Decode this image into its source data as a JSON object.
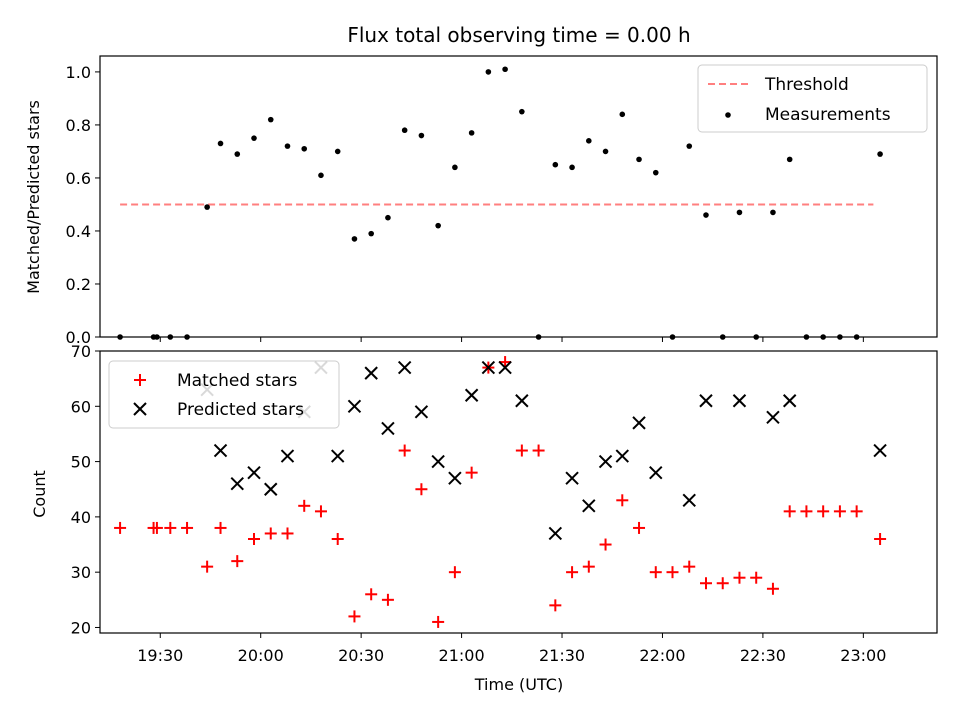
{
  "chart_data": [
    {
      "type": "scatter",
      "title": "Flux total observing time = 0.00 h",
      "xlabel": "",
      "ylabel": "Matched/Predicted stars",
      "ylim": [
        0,
        1.06
      ],
      "yticks": [
        0.0,
        0.2,
        0.4,
        0.6,
        0.8,
        1.0
      ],
      "ytick_labels": [
        "0.0",
        "0.2",
        "0.4",
        "0.6",
        "0.8",
        "1.0"
      ],
      "xlim": [
        "19:12",
        "23:22"
      ],
      "legend_position": "upper right",
      "series": [
        {
          "name": "Threshold",
          "style": "dashed-line",
          "color": "#ff7f7f",
          "x": [
            "19:18",
            "23:03"
          ],
          "y": [
            0.5,
            0.5
          ]
        },
        {
          "name": "Measurements",
          "style": "dot",
          "color": "#000000",
          "x": [
            "19:18",
            "19:28",
            "19:29",
            "19:33",
            "19:38",
            "19:44",
            "19:48",
            "19:53",
            "19:58",
            "20:03",
            "20:08",
            "20:13",
            "20:18",
            "20:23",
            "20:28",
            "20:33",
            "20:38",
            "20:43",
            "20:48",
            "20:53",
            "20:58",
            "21:03",
            "21:08",
            "21:13",
            "21:18",
            "21:23",
            "21:28",
            "21:33",
            "21:38",
            "21:43",
            "21:48",
            "21:53",
            "21:58",
            "22:03",
            "22:08",
            "22:13",
            "22:18",
            "22:23",
            "22:28",
            "22:33",
            "22:38",
            "22:43",
            "22:48",
            "22:53",
            "22:58",
            "23:05"
          ],
          "y": [
            0.0,
            0.0,
            0.0,
            0.0,
            0.0,
            0.49,
            0.73,
            0.69,
            0.75,
            0.82,
            0.72,
            0.71,
            0.61,
            0.7,
            0.37,
            0.39,
            0.45,
            0.78,
            0.76,
            0.42,
            0.64,
            0.77,
            1.0,
            1.01,
            0.85,
            0.0,
            0.65,
            0.64,
            0.74,
            0.7,
            0.84,
            0.67,
            0.62,
            0.0,
            0.72,
            0.46,
            0.0,
            0.47,
            0.0,
            0.47,
            0.67,
            0.0,
            0.0,
            0.0,
            0.0,
            0.69
          ]
        }
      ]
    },
    {
      "type": "scatter",
      "title": "",
      "xlabel": "Time (UTC)",
      "ylabel": "Count",
      "ylim": [
        19,
        70
      ],
      "yticks": [
        20,
        30,
        40,
        50,
        60,
        70
      ],
      "ytick_labels": [
        "20",
        "30",
        "40",
        "50",
        "60",
        "70"
      ],
      "xlim": [
        "19:12",
        "23:22"
      ],
      "xticks": [
        "19:30",
        "20:00",
        "20:30",
        "21:00",
        "21:30",
        "22:00",
        "22:30",
        "23:00"
      ],
      "xtick_labels": [
        "19:30",
        "20:00",
        "20:30",
        "21:00",
        "21:30",
        "22:00",
        "22:30",
        "23:00"
      ],
      "legend_position": "upper left",
      "series": [
        {
          "name": "Matched stars",
          "marker": "+",
          "color": "#ff0000",
          "x": [
            "19:18",
            "19:28",
            "19:29",
            "19:33",
            "19:38",
            "19:44",
            "19:48",
            "19:53",
            "19:58",
            "20:03",
            "20:08",
            "20:13",
            "20:18",
            "20:23",
            "20:28",
            "20:33",
            "20:38",
            "20:43",
            "20:48",
            "20:53",
            "20:58",
            "21:03",
            "21:08",
            "21:13",
            "21:18",
            "21:23",
            "21:28",
            "21:33",
            "21:38",
            "21:43",
            "21:48",
            "21:53",
            "21:58",
            "22:03",
            "22:08",
            "22:13",
            "22:18",
            "22:23",
            "22:28",
            "22:33",
            "22:38",
            "22:43",
            "22:48",
            "22:53",
            "22:58",
            "23:05"
          ],
          "y": [
            38,
            38,
            38,
            38,
            38,
            31,
            38,
            32,
            36,
            37,
            37,
            42,
            41,
            36,
            22,
            26,
            25,
            52,
            45,
            21,
            30,
            48,
            67,
            68,
            52,
            52,
            24,
            30,
            31,
            35,
            43,
            38,
            30,
            30,
            31,
            28,
            28,
            29,
            29,
            27,
            41,
            41,
            41,
            41,
            41,
            36
          ]
        },
        {
          "name": "Predicted stars",
          "marker": "x",
          "color": "#000000",
          "x": [
            "19:44",
            "19:48",
            "19:53",
            "19:58",
            "20:03",
            "20:08",
            "20:13",
            "20:18",
            "20:23",
            "20:28",
            "20:33",
            "20:38",
            "20:43",
            "20:48",
            "20:53",
            "20:58",
            "21:03",
            "21:08",
            "21:13",
            "21:18",
            "21:28",
            "21:33",
            "21:38",
            "21:43",
            "21:48",
            "21:53",
            "21:58",
            "22:08",
            "22:13",
            "22:23",
            "22:33",
            "22:38",
            "23:05"
          ],
          "y": [
            63,
            52,
            46,
            48,
            45,
            51,
            59,
            67,
            51,
            60,
            66,
            56,
            67,
            59,
            50,
            47,
            62,
            67,
            67,
            61,
            37,
            47,
            42,
            50,
            51,
            57,
            48,
            43,
            61,
            61,
            58,
            61,
            52
          ]
        }
      ]
    }
  ]
}
